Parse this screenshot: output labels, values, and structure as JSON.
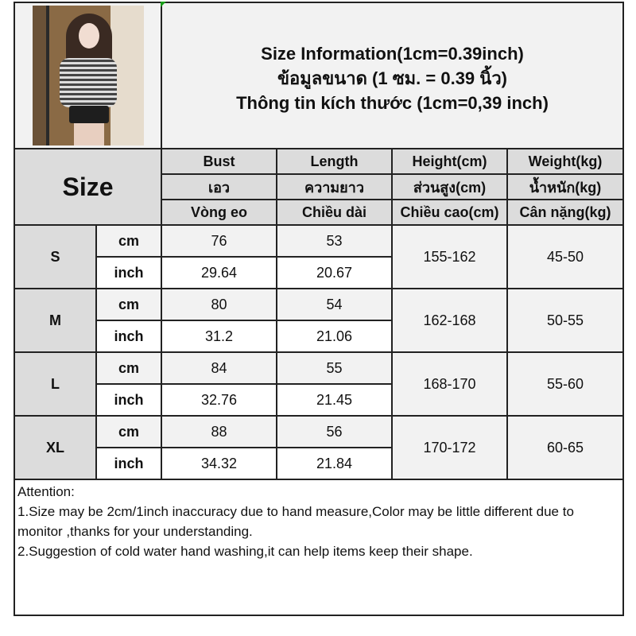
{
  "title_lines": [
    "Size Information(1cm=0.39inch)",
    "ข้อมูลขนาด (1 ซม. = 0.39 นิ้ว)",
    "Thông tin kích thước (1cm=0,39 inch)"
  ],
  "size_label": "Size",
  "columns": [
    {
      "en": "Bust",
      "th": "เอว",
      "vi": "Vòng eo"
    },
    {
      "en": "Length",
      "th": "ความยาว",
      "vi": "Chiều dài"
    },
    {
      "en": "Height(cm)",
      "th": "ส่วนสูง(cm)",
      "vi": "Chiều cao(cm)"
    },
    {
      "en": "Weight(kg)",
      "th": "น้ำหนัก(kg)",
      "vi": "Cân nặng(kg)"
    }
  ],
  "units": {
    "cm": "cm",
    "inch": "inch"
  },
  "rows": [
    {
      "size": "S",
      "cm": {
        "bust": "76",
        "length": "53"
      },
      "inch": {
        "bust": "29.64",
        "length": "20.67"
      },
      "height": "155-162",
      "weight": "45-50"
    },
    {
      "size": "M",
      "cm": {
        "bust": "80",
        "length": "54"
      },
      "inch": {
        "bust": "31.2",
        "length": "21.06"
      },
      "height": "162-168",
      "weight": "50-55"
    },
    {
      "size": "L",
      "cm": {
        "bust": "84",
        "length": "55"
      },
      "inch": {
        "bust": "32.76",
        "length": "21.45"
      },
      "height": "168-170",
      "weight": "55-60"
    },
    {
      "size": "XL",
      "cm": {
        "bust": "88",
        "length": "56"
      },
      "inch": {
        "bust": "34.32",
        "length": "21.84"
      },
      "height": "170-172",
      "weight": "60-65"
    }
  ],
  "attention": {
    "heading": "Attention:",
    "lines": [
      "1.Size may be 2cm/1inch inaccuracy due to hand measure,Color may be little different due to monitor ,thanks for your understanding.",
      "2.Suggestion of cold water hand washing,it can help items keep their shape."
    ]
  },
  "colors": {
    "header_gray": "#dcdcdc",
    "light_gray": "#f2f2f2",
    "border": "#222222"
  }
}
